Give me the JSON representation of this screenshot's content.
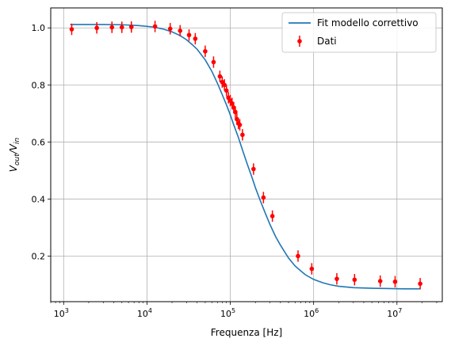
{
  "chart_data": {
    "type": "scatter",
    "xscale": "log",
    "xlim": [
      700,
      35000000
    ],
    "ylim": [
      0.04,
      1.07
    ],
    "xlabel": "Frequenza [Hz]",
    "ylabel_main": "V",
    "ylabel_num_sub": "out",
    "ylabel_slash": "/V",
    "ylabel_den_sub": "in",
    "x_ticks": [
      {
        "value": 1000,
        "base": "10",
        "exp": "3"
      },
      {
        "value": 10000,
        "base": "10",
        "exp": "4"
      },
      {
        "value": 100000,
        "base": "10",
        "exp": "5"
      },
      {
        "value": 1000000,
        "base": "10",
        "exp": "6"
      },
      {
        "value": 10000000,
        "base": "10",
        "exp": "7"
      }
    ],
    "y_ticks": [
      {
        "value": 0.2,
        "label": "0.2"
      },
      {
        "value": 0.4,
        "label": "0.4"
      },
      {
        "value": 0.6,
        "label": "0.6"
      },
      {
        "value": 0.8,
        "label": "0.8"
      },
      {
        "value": 1.0,
        "label": "1.0"
      }
    ],
    "grid": true,
    "legend_position": "top-right",
    "series": [
      {
        "name": "Fit modello correttivo",
        "kind": "line",
        "color": "#1f77b4",
        "x": [
          1200,
          2000,
          3000,
          5000,
          8000,
          12000,
          16000,
          20000,
          25000,
          30000,
          35000,
          40000,
          50000,
          60000,
          70000,
          80000,
          90000,
          100000,
          110000,
          125000,
          140000,
          160000,
          180000,
          200000,
          230000,
          260000,
          300000,
          350000,
          400000,
          500000,
          600000,
          700000,
          800000,
          1000000,
          1300000,
          1600000,
          2000000,
          3000000,
          5000000,
          8000000,
          12000000,
          19000000
        ],
        "y": [
          1.012,
          1.012,
          1.012,
          1.011,
          1.008,
          1.003,
          0.995,
          0.986,
          0.973,
          0.958,
          0.941,
          0.925,
          0.888,
          0.848,
          0.806,
          0.766,
          0.73,
          0.695,
          0.66,
          0.616,
          0.572,
          0.522,
          0.48,
          0.44,
          0.393,
          0.354,
          0.31,
          0.268,
          0.238,
          0.193,
          0.165,
          0.148,
          0.134,
          0.118,
          0.106,
          0.099,
          0.094,
          0.089,
          0.087,
          0.086,
          0.085,
          0.085
        ]
      },
      {
        "name": "Dati",
        "kind": "errorbar",
        "color": "#ff0000",
        "x": [
          1250,
          2500,
          3800,
          5000,
          6500,
          12500,
          19000,
          25000,
          32000,
          38000,
          50000,
          63000,
          75000,
          80000,
          85000,
          90000,
          95000,
          100000,
          105000,
          110000,
          115000,
          120000,
          125000,
          130000,
          140000,
          190000,
          250000,
          320000,
          650000,
          950000,
          1900000,
          3100000,
          6300000,
          9500000,
          19000000
        ],
        "y": [
          0.995,
          1.0,
          1.002,
          1.002,
          1.003,
          1.005,
          0.997,
          0.99,
          0.975,
          0.962,
          0.918,
          0.88,
          0.83,
          0.81,
          0.8,
          0.78,
          0.755,
          0.745,
          0.735,
          0.72,
          0.705,
          0.68,
          0.665,
          0.66,
          0.625,
          0.505,
          0.405,
          0.34,
          0.2,
          0.155,
          0.12,
          0.117,
          0.112,
          0.11,
          0.103
        ],
        "yerr": [
          0.02,
          0.02,
          0.02,
          0.02,
          0.02,
          0.02,
          0.02,
          0.02,
          0.02,
          0.02,
          0.02,
          0.02,
          0.02,
          0.02,
          0.02,
          0.02,
          0.02,
          0.02,
          0.02,
          0.02,
          0.02,
          0.02,
          0.02,
          0.02,
          0.02,
          0.02,
          0.02,
          0.02,
          0.02,
          0.02,
          0.02,
          0.02,
          0.02,
          0.02,
          0.02
        ]
      }
    ]
  }
}
